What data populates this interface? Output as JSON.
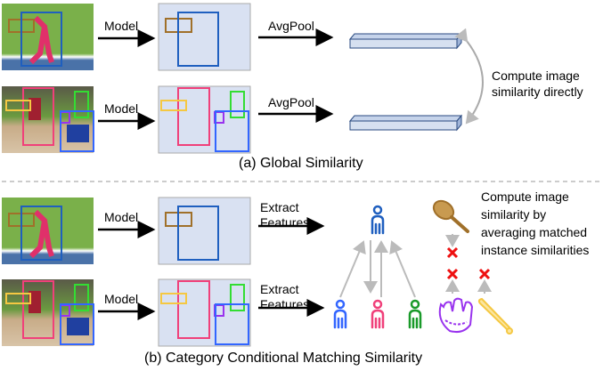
{
  "section_a": {
    "caption": "(a) Global Similarity",
    "model_label": "Model",
    "pool_label": "AvgPool",
    "note_line1": "Compute image",
    "note_line2": "similarity directly"
  },
  "section_b": {
    "caption": "(b) Category Conditional Matching Similarity",
    "model_label": "Model",
    "extract_line1": "Extract",
    "extract_line2": "Features",
    "note_line1": "Compute image",
    "note_line2": "similarity by",
    "note_line3": "averaging matched",
    "note_line4": "instance similarities"
  },
  "colors": {
    "feature_map_bg": "#d9e1f2",
    "box_brown": "#a0702a",
    "box_blue": "#1f5fbf",
    "box_pink": "#f0407a",
    "box_yellow": "#f5c842",
    "box_green": "#33dd33",
    "box_purple": "#9933ee",
    "mismatch_red": "#ee1111",
    "match_arrow": "#bbbbbb"
  }
}
